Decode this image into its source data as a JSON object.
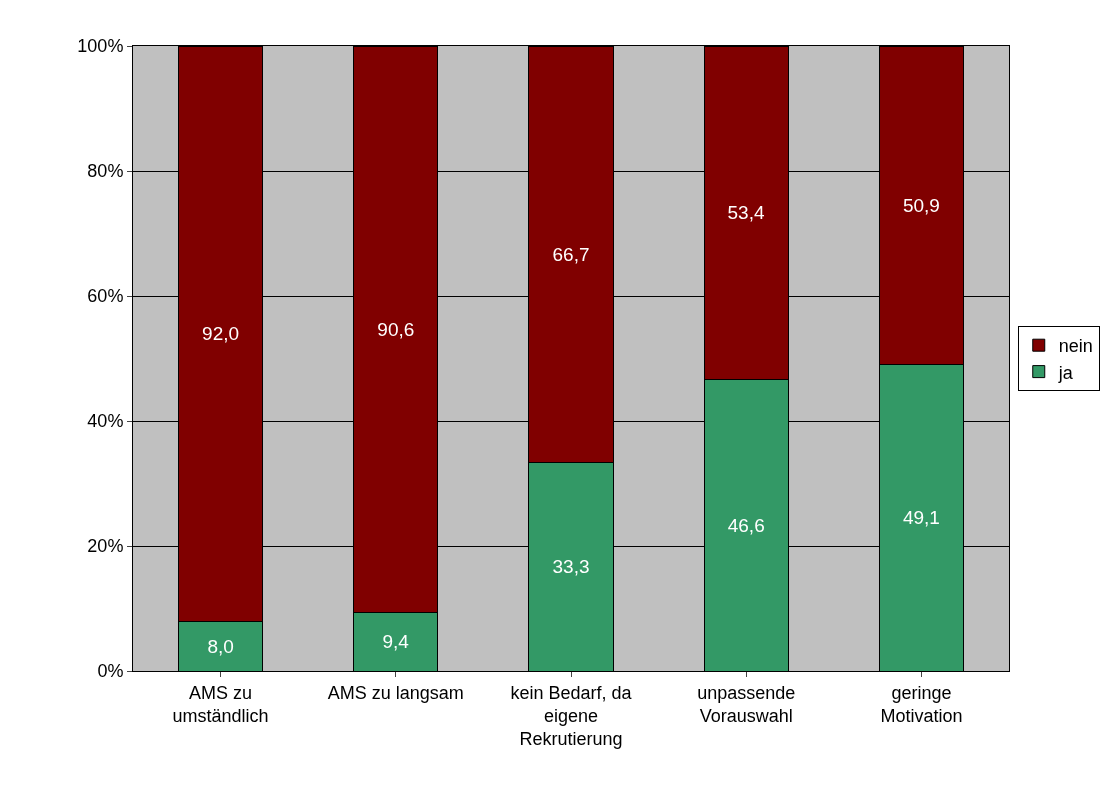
{
  "chart_data": {
    "type": "bar",
    "stacked": true,
    "categories": [
      "AMS zu umständlich",
      "AMS zu langsam",
      "kein Bedarf, da eigene Rekrutierung",
      "unpassende Vorauswahl",
      "geringe Motivation"
    ],
    "series": [
      {
        "name": "ja",
        "color": "#339966",
        "values": [
          8.0,
          9.4,
          33.3,
          46.6,
          49.1
        ],
        "value_labels": [
          "8,0",
          "9,4",
          "33,3",
          "46,6",
          "49,1"
        ]
      },
      {
        "name": "nein",
        "color": "#800000",
        "values": [
          92.0,
          90.6,
          66.7,
          53.4,
          50.9
        ],
        "value_labels": [
          "92,0",
          "90,6",
          "66,7",
          "53,4",
          "50,9"
        ]
      }
    ],
    "ylim": [
      0,
      100
    ],
    "yticks": [
      {
        "value": 0,
        "label": "0%"
      },
      {
        "value": 20,
        "label": "20%"
      },
      {
        "value": 40,
        "label": "40%"
      },
      {
        "value": 60,
        "label": "60%"
      },
      {
        "value": 80,
        "label": "80%"
      },
      {
        "value": 100,
        "label": "100%"
      }
    ],
    "grid": "y",
    "legend": "right"
  }
}
